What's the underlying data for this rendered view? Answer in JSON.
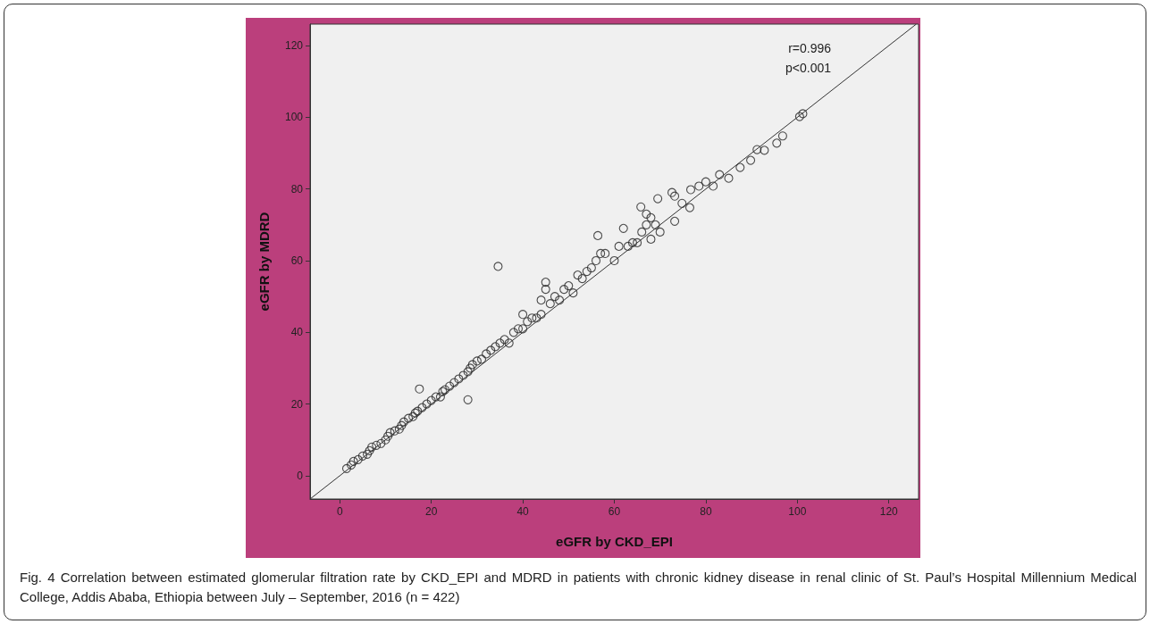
{
  "chart_data": {
    "type": "scatter",
    "xlabel": "eGFR by CKD_EPI",
    "ylabel": "eGFR by MDRD",
    "xlim": [
      -6.5,
      126.5
    ],
    "ylim": [
      -6.5,
      126
    ],
    "xticks": [
      0,
      20,
      40,
      60,
      80,
      100,
      120
    ],
    "yticks": [
      0,
      20,
      40,
      60,
      80,
      100,
      120
    ],
    "grid": false,
    "annotations": [
      "r=0.996",
      "p<0.001",
      "Fig. 4 Correlation between estimated glomerular filtration rate by CKD_EPI and MDRD in patients with chronic kidney disease in renal clinic of St. Paul’s Hospital Millennium Medical College, Addis Ababa, Ethiopia between July – September, 2016 (n = 422)"
    ],
    "series": [
      {
        "marker": "circle",
        "color": "#222222",
        "x": [
          1.5,
          2.5,
          3,
          4,
          5,
          6,
          6.5,
          7,
          8,
          9,
          10,
          10.5,
          11,
          12,
          13,
          13.5,
          14,
          15,
          16,
          16.5,
          17,
          18,
          19,
          20,
          21,
          22,
          22.5,
          23,
          24,
          25,
          26,
          27,
          28,
          28.5,
          29,
          30,
          31,
          32,
          33,
          34,
          35,
          36,
          37,
          38,
          39,
          40,
          40,
          41,
          42,
          43,
          44,
          44,
          45,
          45,
          46,
          47,
          48,
          49,
          50,
          51,
          52,
          53,
          54,
          55,
          56,
          57,
          56.4,
          58,
          60,
          61,
          62,
          63,
          64,
          65,
          65.8,
          66,
          67,
          67,
          68,
          68,
          69,
          69.5,
          70,
          72.6,
          73.2,
          73.2,
          74.8,
          76.5,
          76.7,
          78.5,
          80,
          81.6,
          83,
          85,
          87.5,
          89.8,
          91.2,
          92.8,
          95.5,
          96.8,
          100.5,
          101.2,
          17.4,
          28,
          34.6
        ],
        "values": [
          2,
          3,
          4,
          4.5,
          5.5,
          6,
          7,
          8,
          8.5,
          9,
          10,
          11,
          12,
          12.5,
          13,
          14,
          15,
          16,
          16.5,
          17.5,
          18,
          19,
          20,
          21,
          22,
          22,
          23.5,
          24,
          25,
          26,
          27,
          28,
          29,
          30,
          31,
          32,
          32.5,
          34,
          35,
          36,
          37,
          38,
          37,
          40,
          41,
          41,
          45,
          43,
          44,
          44,
          45,
          49,
          52,
          54,
          48,
          50,
          49,
          52,
          53,
          51,
          56,
          55,
          57,
          58,
          60,
          62,
          67,
          62,
          60,
          64,
          69,
          64,
          65,
          65,
          75,
          68,
          70,
          73,
          72,
          66,
          70,
          77.3,
          68,
          79,
          78,
          71,
          76,
          74.8,
          79.8,
          80.8,
          82,
          80.8,
          84,
          83,
          86,
          88,
          91,
          90.8,
          92.8,
          94.8,
          100.2,
          101,
          24.2,
          21.2,
          58.4
        ]
      },
      {
        "type": "line",
        "marker": "none",
        "color": "#333333",
        "x": [
          -6.5,
          126
        ],
        "values": [
          -6.5,
          126
        ]
      }
    ]
  }
}
